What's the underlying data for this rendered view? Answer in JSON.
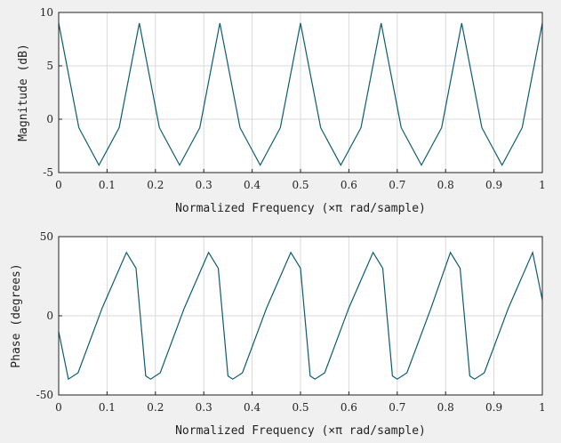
{
  "chart_data": [
    {
      "type": "line",
      "title": "",
      "xlabel": "Normalized Frequency (×π rad/sample)",
      "ylabel": "Magnitude (dB)",
      "xlim": [
        0,
        1
      ],
      "ylim": [
        -5,
        10
      ],
      "xticks": [
        0,
        0.1,
        0.2,
        0.3,
        0.4,
        0.5,
        0.6,
        0.7,
        0.8,
        0.9,
        1
      ],
      "yticks": [
        -5,
        0,
        5,
        10
      ],
      "grid": true,
      "line_color": "#0b5c6e",
      "series": [
        {
          "x": [
            0,
            0.0417,
            0.0833,
            0.125,
            0.1667,
            0.2083,
            0.25,
            0.2917,
            0.3333,
            0.375,
            0.4167,
            0.4583,
            0.5,
            0.5417,
            0.5833,
            0.625,
            0.6667,
            0.7083,
            0.75,
            0.7917,
            0.8333,
            0.875,
            0.9167,
            0.9583,
            1
          ],
          "y": [
            9.0,
            -0.8,
            -4.3,
            -0.8,
            9.0,
            -0.8,
            -4.3,
            -0.8,
            9.0,
            -0.8,
            -4.3,
            -0.8,
            9.0,
            -0.8,
            -4.3,
            -0.8,
            9.0,
            -0.8,
            -4.3,
            -0.8,
            9.0,
            -0.8,
            -4.3,
            -0.8,
            9.0
          ]
        }
      ]
    },
    {
      "type": "line",
      "title": "",
      "xlabel": "Normalized Frequency (×π rad/sample)",
      "ylabel": "Phase (degrees)",
      "xlim": [
        0,
        1
      ],
      "ylim": [
        -50,
        50
      ],
      "xticks": [
        0,
        0.1,
        0.2,
        0.3,
        0.4,
        0.5,
        0.6,
        0.7,
        0.8,
        0.9,
        1
      ],
      "yticks": [
        -50,
        0,
        50
      ],
      "grid": true,
      "line_color": "#0b5c6e",
      "series": [
        {
          "x": [
            0,
            0.02,
            0.04,
            0.09,
            0.14,
            0.16,
            0.18,
            0.19,
            0.21,
            0.26,
            0.31,
            0.33,
            0.35,
            0.36,
            0.38,
            0.43,
            0.48,
            0.5,
            0.52,
            0.53,
            0.55,
            0.6,
            0.65,
            0.67,
            0.69,
            0.7,
            0.72,
            0.77,
            0.81,
            0.83,
            0.85,
            0.86,
            0.88,
            0.93,
            0.98,
            1.0
          ],
          "y": [
            -10,
            -40,
            -36,
            5,
            40,
            30,
            -38,
            -40,
            -36,
            5,
            40,
            30,
            -38,
            -40,
            -36,
            5,
            40,
            30,
            -38,
            -40,
            -36,
            5,
            40,
            30,
            -38,
            -40,
            -36,
            5,
            40,
            30,
            -38,
            -40,
            -36,
            5,
            40,
            10
          ]
        }
      ]
    }
  ]
}
